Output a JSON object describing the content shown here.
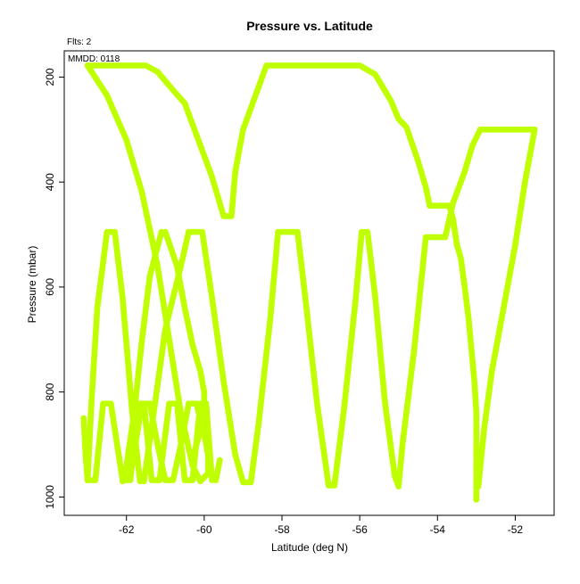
{
  "chart_data": {
    "type": "scatter",
    "title": "Pressure vs. Latitude",
    "xlabel": "Latitude (deg N)",
    "ylabel": "Pressure (mbar)",
    "xlim": [
      -63.6,
      -51.0
    ],
    "ylim": [
      1035,
      150
    ],
    "y_inverted": true,
    "grid": false,
    "legend": "none",
    "x_ticks": [
      -62,
      -60,
      -58,
      -56,
      -54,
      -52
    ],
    "x_tick_labels": [
      "-62",
      "-60",
      "-58",
      "-56",
      "-54",
      "-52"
    ],
    "y_ticks": [
      200,
      400,
      600,
      800,
      1000
    ],
    "y_tick_labels": [
      "200",
      "400",
      "600",
      "800",
      "1000"
    ],
    "marker_color": "#bfff00",
    "annotations": {
      "fits": "Flts: 2",
      "mmdd": "MMDD: 0118"
    },
    "series": [
      {
        "points": [
          [
            -63.0,
            178
          ],
          [
            -61.5,
            178
          ],
          [
            -61.2,
            190
          ],
          [
            -60.8,
            225
          ],
          [
            -60.5,
            250
          ],
          [
            -60.2,
            310
          ],
          [
            -59.8,
            390
          ],
          [
            -59.6,
            440
          ],
          [
            -59.5,
            465
          ],
          [
            -59.3,
            465
          ],
          [
            -59.2,
            380
          ],
          [
            -59.0,
            300
          ],
          [
            -58.4,
            178
          ],
          [
            -56.0,
            178
          ],
          [
            -55.6,
            195
          ],
          [
            -55.2,
            245
          ],
          [
            -55.0,
            280
          ],
          [
            -54.8,
            295
          ],
          [
            -54.5,
            360
          ],
          [
            -54.3,
            410
          ],
          [
            -54.2,
            445
          ],
          [
            -53.7,
            445
          ],
          [
            -53.6,
            470
          ],
          [
            -53.5,
            520
          ],
          [
            -53.4,
            545
          ],
          [
            -53.3,
            600
          ],
          [
            -53.2,
            660
          ],
          [
            -53.15,
            700
          ],
          [
            -53.1,
            740
          ],
          [
            -53.05,
            780
          ],
          [
            -53.0,
            840
          ],
          [
            -53.0,
            1005
          ]
        ]
      },
      {
        "points": [
          [
            -63.0,
            178
          ],
          [
            -62.5,
            235
          ],
          [
            -62.0,
            320
          ],
          [
            -61.6,
            420
          ],
          [
            -61.2,
            560
          ],
          [
            -60.9,
            700
          ],
          [
            -60.6,
            840
          ],
          [
            -60.3,
            940
          ],
          [
            -60.1,
            970
          ],
          [
            -59.9,
            955
          ],
          [
            -59.9,
            920
          ],
          [
            -60.0,
            880
          ],
          [
            -60.2,
            822
          ],
          [
            -60.4,
            822
          ],
          [
            -60.6,
            900
          ],
          [
            -60.8,
            968
          ],
          [
            -61.0,
            968
          ],
          [
            -61.2,
            900
          ],
          [
            -61.4,
            822
          ],
          [
            -61.6,
            822
          ],
          [
            -61.9,
            960
          ],
          [
            -62.1,
            970
          ],
          [
            -62.0,
            940
          ],
          [
            -61.8,
            840
          ],
          [
            -61.6,
            700
          ],
          [
            -61.4,
            580
          ],
          [
            -61.1,
            495
          ],
          [
            -61.0,
            495
          ],
          [
            -60.7,
            560
          ],
          [
            -60.5,
            640
          ],
          [
            -60.3,
            710
          ],
          [
            -60.1,
            760
          ],
          [
            -60.0,
            800
          ],
          [
            -60.0,
            850
          ],
          [
            -60.2,
            900
          ],
          [
            -60.3,
            930
          ]
        ]
      },
      {
        "points": [
          [
            -63.1,
            850
          ],
          [
            -63.05,
            920
          ],
          [
            -63.0,
            968
          ],
          [
            -62.8,
            968
          ],
          [
            -62.6,
            822
          ],
          [
            -62.4,
            822
          ],
          [
            -62.1,
            968
          ],
          [
            -61.9,
            968
          ],
          [
            -61.7,
            822
          ],
          [
            -61.55,
            822
          ],
          [
            -61.35,
            968
          ],
          [
            -61.15,
            968
          ],
          [
            -60.9,
            822
          ],
          [
            -60.7,
            822
          ],
          [
            -60.5,
            968
          ],
          [
            -60.3,
            968
          ],
          [
            -60.1,
            822
          ],
          [
            -59.95,
            822
          ],
          [
            -59.8,
            968
          ],
          [
            -59.7,
            968
          ],
          [
            -59.6,
            930
          ]
        ]
      },
      {
        "points": [
          [
            -63.0,
            968
          ],
          [
            -62.9,
            820
          ],
          [
            -62.75,
            640
          ],
          [
            -62.5,
            495
          ],
          [
            -62.3,
            495
          ],
          [
            -62.1,
            620
          ],
          [
            -61.85,
            840
          ],
          [
            -61.65,
            970
          ],
          [
            -61.55,
            970
          ],
          [
            -61.3,
            840
          ],
          [
            -61.0,
            680
          ],
          [
            -60.6,
            560
          ],
          [
            -60.4,
            495
          ],
          [
            -60.05,
            495
          ],
          [
            -59.8,
            620
          ],
          [
            -59.5,
            780
          ],
          [
            -59.2,
            920
          ],
          [
            -59.0,
            972
          ],
          [
            -58.8,
            972
          ],
          [
            -58.6,
            860
          ],
          [
            -58.3,
            660
          ],
          [
            -58.1,
            495
          ],
          [
            -57.6,
            495
          ],
          [
            -57.4,
            620
          ],
          [
            -57.1,
            820
          ],
          [
            -56.8,
            978
          ],
          [
            -56.65,
            978
          ],
          [
            -56.4,
            830
          ],
          [
            -56.1,
            620
          ],
          [
            -55.95,
            495
          ],
          [
            -55.8,
            495
          ],
          [
            -55.6,
            620
          ],
          [
            -55.35,
            820
          ],
          [
            -55.1,
            960
          ],
          [
            -55.0,
            980
          ],
          [
            -54.9,
            900
          ],
          [
            -54.6,
            720
          ],
          [
            -54.3,
            505
          ],
          [
            -53.8,
            505
          ],
          [
            -53.6,
            440
          ],
          [
            -53.3,
            380
          ],
          [
            -53.1,
            330
          ],
          [
            -52.9,
            300
          ],
          [
            -51.5,
            300
          ],
          [
            -51.75,
            400
          ],
          [
            -52.0,
            520
          ],
          [
            -52.3,
            640
          ],
          [
            -52.6,
            760
          ],
          [
            -52.8,
            870
          ],
          [
            -52.95,
            980
          ]
        ]
      }
    ]
  }
}
